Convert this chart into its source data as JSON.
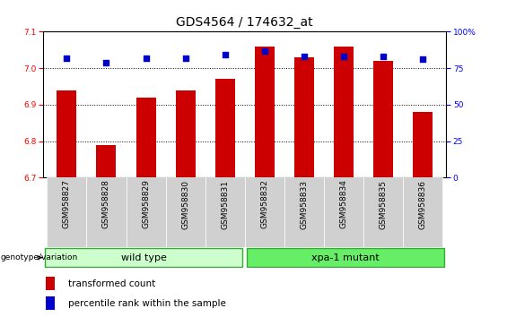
{
  "title": "GDS4564 / 174632_at",
  "samples": [
    "GSM958827",
    "GSM958828",
    "GSM958829",
    "GSM958830",
    "GSM958831",
    "GSM958832",
    "GSM958833",
    "GSM958834",
    "GSM958835",
    "GSM958836"
  ],
  "red_values": [
    6.94,
    6.79,
    6.92,
    6.94,
    6.97,
    7.06,
    7.03,
    7.06,
    7.02,
    6.88
  ],
  "blue_values": [
    82,
    79,
    82,
    82,
    84,
    87,
    83,
    83,
    83,
    81
  ],
  "ylim_left": [
    6.7,
    7.1
  ],
  "ylim_right": [
    0,
    100
  ],
  "yticks_left": [
    6.7,
    6.8,
    6.9,
    7.0,
    7.1
  ],
  "yticks_right": [
    0,
    25,
    50,
    75,
    100
  ],
  "grid_values": [
    6.8,
    6.9,
    7.0
  ],
  "wild_type_label": "wild type",
  "mutant_label": "xpa-1 mutant",
  "group_label": "genotype/variation",
  "legend_red": "transformed count",
  "legend_blue": "percentile rank within the sample",
  "bar_color": "#cc0000",
  "dot_color": "#0000cc",
  "wild_color": "#ccffcc",
  "mutant_color": "#66ee66",
  "wild_edge": "#33aa33",
  "mutant_edge": "#33aa33",
  "tick_bg_color": "#d0d0d0",
  "title_fontsize": 10,
  "tick_fontsize": 6.5,
  "label_fontsize": 8,
  "legend_fontsize": 7.5
}
